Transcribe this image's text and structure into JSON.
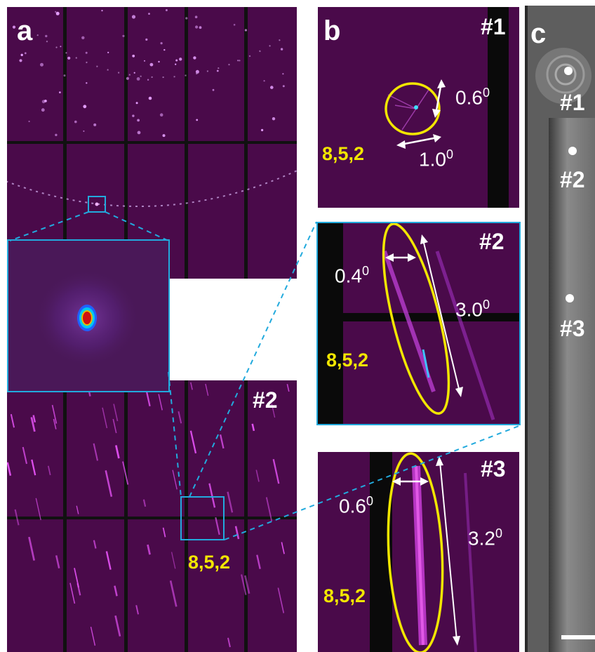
{
  "panels": {
    "a": {
      "label": "a",
      "sub_label": "#2",
      "hkl": "8,5,2"
    },
    "b": {
      "label": "b",
      "spots": [
        {
          "id": "#1",
          "hkl": "8,5,2",
          "width": "0.6",
          "length": "1.0",
          "unit": "0"
        },
        {
          "id": "#2",
          "hkl": "8,5,2",
          "width": "0.4",
          "length": "3.0",
          "unit": "0"
        },
        {
          "id": "#3",
          "hkl": "8,5,2",
          "width": "0.6",
          "length": "3.2",
          "unit": "0"
        }
      ]
    },
    "c": {
      "label": "c",
      "points": [
        "#1",
        "#2",
        "#3"
      ]
    }
  },
  "colors": {
    "detector_bg": "#4a0a4a",
    "spot": "#e070f0",
    "ellipse": "#f2e600",
    "box": "#22aadd",
    "arrow": "#ffffff",
    "micrograph_bg": "#6a6a6a"
  }
}
